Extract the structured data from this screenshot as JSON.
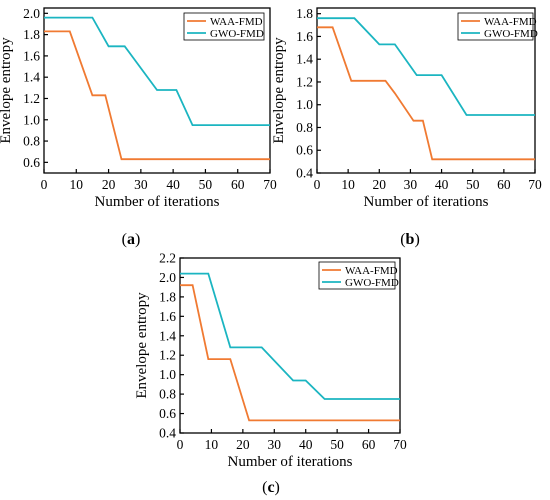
{
  "colors": {
    "waa": "#F07A32",
    "gwo": "#1BB5C1",
    "axis": "#000000"
  },
  "chart_data": [
    {
      "type": "line",
      "panel_label": "(a)",
      "xlabel": "Number of iterations",
      "ylabel": "Envelope entropy",
      "xlim": [
        0,
        70
      ],
      "ylim": [
        0.5,
        2.05
      ],
      "xticks": [
        0,
        10,
        20,
        30,
        40,
        50,
        60,
        70
      ],
      "yticks": [
        0.6,
        0.8,
        1.0,
        1.2,
        1.4,
        1.6,
        1.8,
        2.0
      ],
      "ytick_labels": [
        "0.6",
        "0.8",
        "1.0",
        "1.2",
        "1.4",
        "1.6",
        "1.8",
        "2.0"
      ],
      "legend_position": "top-right",
      "series": [
        {
          "name": "WAA-FMD",
          "color": "#F07A32",
          "x": [
            0,
            8,
            15,
            19,
            24,
            70
          ],
          "y": [
            1.83,
            1.83,
            1.23,
            1.23,
            0.63,
            0.63
          ]
        },
        {
          "name": "GWO-FMD",
          "color": "#1BB5C1",
          "x": [
            0,
            15,
            20,
            25,
            35,
            41,
            46,
            70
          ],
          "y": [
            1.96,
            1.96,
            1.69,
            1.69,
            1.28,
            1.28,
            0.95,
            0.95
          ]
        }
      ]
    },
    {
      "type": "line",
      "panel_label": "(b)",
      "xlabel": "Number of iterations",
      "ylabel": "Envelope entropy",
      "xlim": [
        0,
        70
      ],
      "ylim": [
        0.4,
        1.85
      ],
      "xticks": [
        0,
        10,
        20,
        30,
        40,
        50,
        60,
        70
      ],
      "yticks": [
        0.4,
        0.6,
        0.8,
        1.0,
        1.2,
        1.4,
        1.6,
        1.8
      ],
      "ytick_labels": [
        "0.4",
        "0.6",
        "0.8",
        "1.0",
        "1.2",
        "1.4",
        "1.6",
        "1.8"
      ],
      "legend_position": "top-right",
      "series": [
        {
          "name": "WAA-FMD",
          "color": "#F07A32",
          "x": [
            0,
            5,
            11,
            22,
            25,
            31,
            34,
            37,
            70
          ],
          "y": [
            1.68,
            1.68,
            1.21,
            1.21,
            1.1,
            0.86,
            0.86,
            0.52,
            0.52
          ]
        },
        {
          "name": "GWO-FMD",
          "color": "#1BB5C1",
          "x": [
            0,
            12,
            20,
            25,
            32,
            40,
            48,
            70
          ],
          "y": [
            1.76,
            1.76,
            1.53,
            1.53,
            1.26,
            1.26,
            0.91,
            0.91
          ]
        }
      ]
    },
    {
      "type": "line",
      "panel_label": "(c)",
      "xlabel": "Number of iterations",
      "ylabel": "Envelope entropy",
      "xlim": [
        0,
        70
      ],
      "ylim": [
        0.4,
        2.2
      ],
      "xticks": [
        0,
        10,
        20,
        30,
        40,
        50,
        60,
        70
      ],
      "yticks": [
        0.4,
        0.6,
        0.8,
        1.0,
        1.2,
        1.4,
        1.6,
        1.8,
        2.0,
        2.2
      ],
      "ytick_labels": [
        "0.4",
        "0.6",
        "0.8",
        "1.0",
        "1.2",
        "1.4",
        "1.6",
        "1.8",
        "2.0",
        "2.2"
      ],
      "legend_position": "top-right",
      "series": [
        {
          "name": "WAA-FMD",
          "color": "#F07A32",
          "x": [
            0,
            4,
            9,
            16,
            22,
            70
          ],
          "y": [
            1.92,
            1.92,
            1.16,
            1.16,
            0.53,
            0.53
          ]
        },
        {
          "name": "GWO-FMD",
          "color": "#1BB5C1",
          "x": [
            0,
            9,
            16,
            26,
            36,
            40,
            46,
            70
          ],
          "y": [
            2.04,
            2.04,
            1.28,
            1.28,
            0.94,
            0.94,
            0.75,
            0.75
          ]
        }
      ]
    }
  ]
}
